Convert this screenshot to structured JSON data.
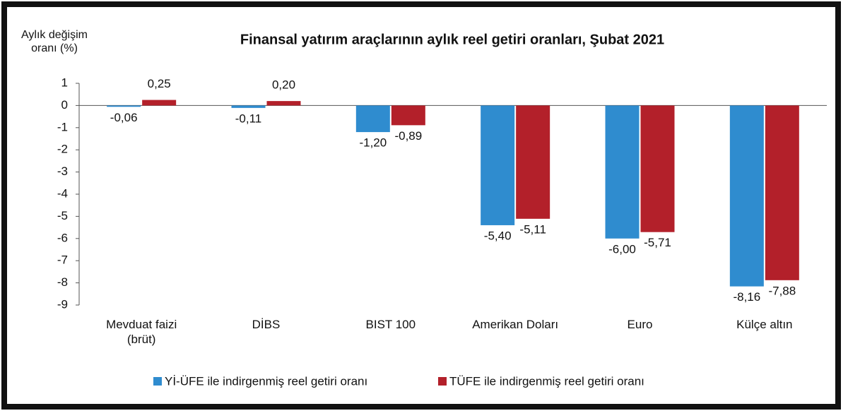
{
  "chart_data": {
    "type": "bar",
    "title": "Finansal yatırım araçlarının aylık reel getiri oranları, Şubat 2021",
    "y_label": "Aylık değişim oranı (%)",
    "categories": [
      "Mevduat faizi (brüt)",
      "DİBS",
      "BIST 100",
      "Amerikan Doları",
      "Euro",
      "Külçe altın"
    ],
    "series": [
      {
        "name": "Yİ-ÜFE ile indirgenmiş reel getiri oranı",
        "color": "#2f8ccf",
        "values": [
          -0.06,
          -0.11,
          -1.2,
          -5.4,
          -6.0,
          -8.16
        ],
        "value_labels": [
          "-0,06",
          "-0,11",
          "-1,20",
          "-5,40",
          "-6,00",
          "-8,16"
        ]
      },
      {
        "name": "TÜFE ile indirgenmiş reel getiri oranı",
        "color": "#b3202a",
        "values": [
          0.25,
          0.2,
          -0.89,
          -5.11,
          -5.71,
          -7.88
        ],
        "value_labels": [
          "0,25",
          "0,20",
          "-0,89",
          "-5,11",
          "-5,71",
          "-7,88"
        ]
      }
    ],
    "ylim": [
      -9,
      1
    ],
    "yticks": [
      1,
      0,
      -1,
      -2,
      -3,
      -4,
      -5,
      -6,
      -7,
      -8,
      -9
    ],
    "legend": "bottom"
  }
}
